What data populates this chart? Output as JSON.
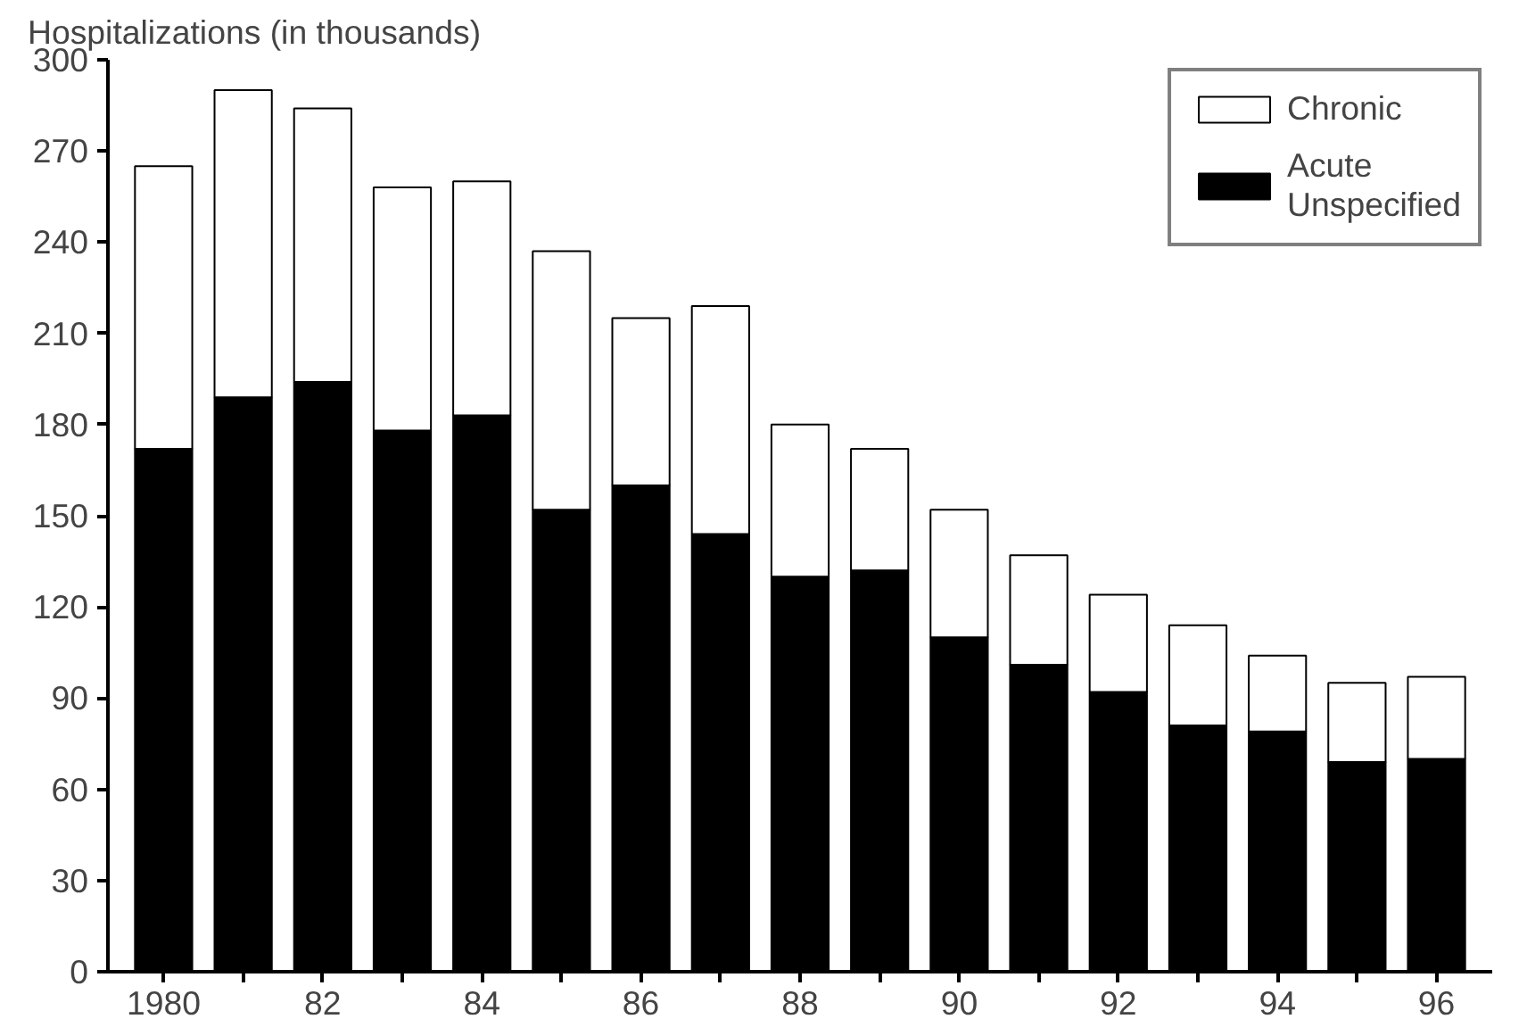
{
  "chart_data": {
    "type": "bar",
    "stacked": true,
    "ylabel": "Hospitalizations (in thousands)",
    "categories": [
      "1980",
      null,
      "82",
      null,
      "84",
      null,
      "86",
      null,
      "88",
      null,
      "90",
      null,
      "92",
      null,
      "94",
      null,
      "96"
    ],
    "series": [
      {
        "name": "Acute\nUnspecified",
        "color": "#000000",
        "values": [
          172,
          189,
          194,
          178,
          183,
          152,
          160,
          144,
          130,
          132,
          110,
          101,
          92,
          81,
          79,
          69,
          70
        ]
      },
      {
        "name": "Chronic",
        "color": "#ffffff",
        "values": [
          93,
          101,
          90,
          80,
          77,
          85,
          55,
          75,
          50,
          40,
          42,
          36,
          32,
          33,
          25,
          26,
          27
        ]
      }
    ],
    "ylim": [
      0,
      300
    ],
    "yticks": [
      0,
      30,
      60,
      90,
      120,
      150,
      180,
      210,
      240,
      270,
      300
    ],
    "grid": false,
    "legend": "top right"
  }
}
